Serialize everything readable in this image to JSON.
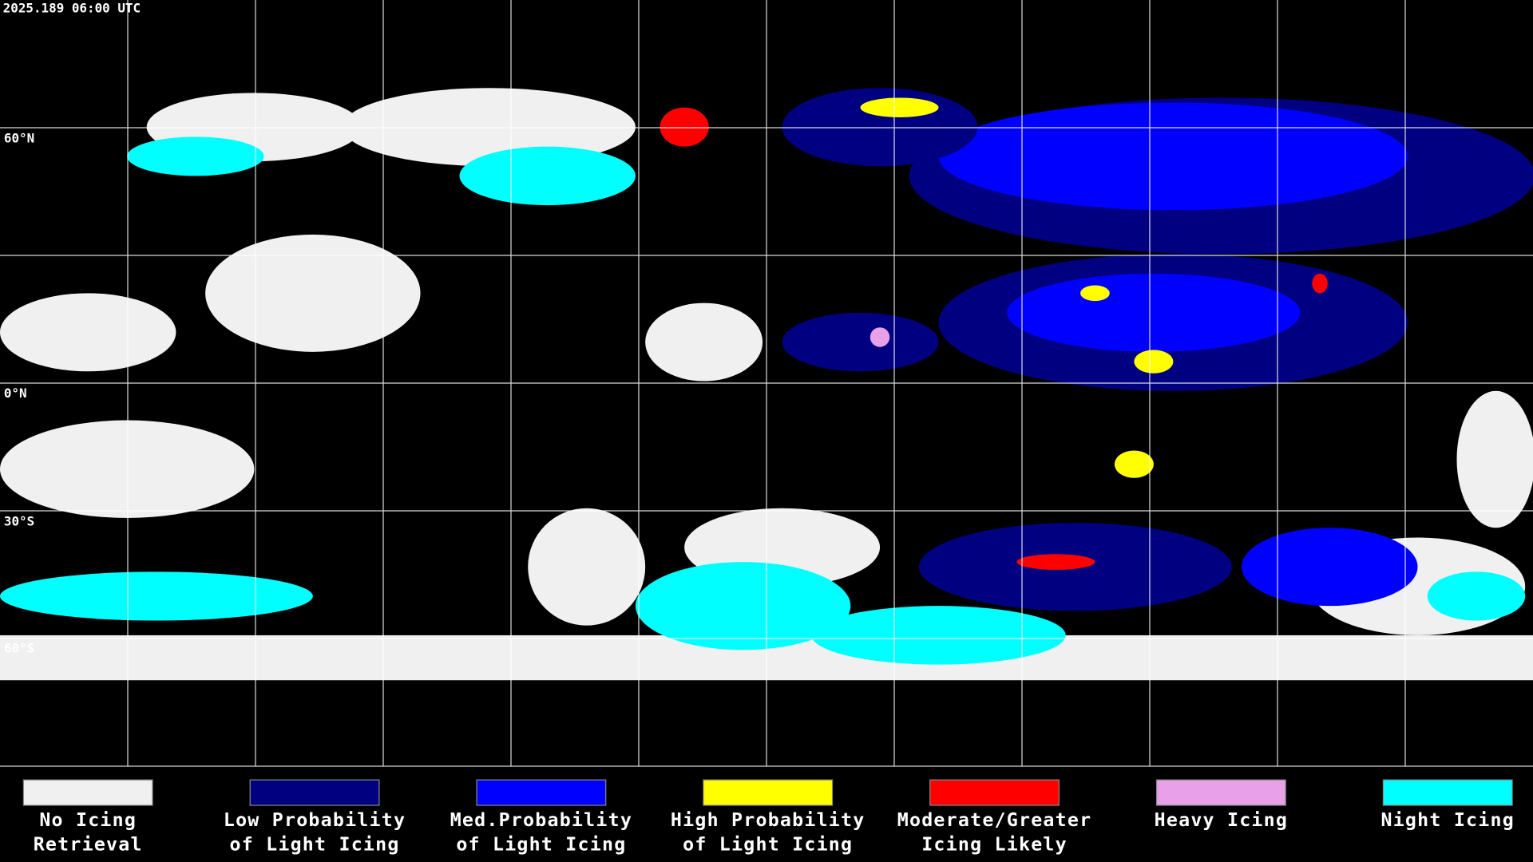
{
  "header": {
    "title": "2025.189 06:00 UTC"
  },
  "map": {
    "lat_labels": [
      "60°N",
      "0°N",
      "30°S",
      "60°S"
    ]
  },
  "legend": [
    {
      "label": [
        "No Icing",
        "Retrieval"
      ],
      "color": "#f0f0f0"
    },
    {
      "label": [
        "Low Probability",
        "of Light Icing"
      ],
      "color": "#000080"
    },
    {
      "label": [
        "Med.Probability",
        "of Light Icing"
      ],
      "color": "#0000ff"
    },
    {
      "label": [
        "High Probability",
        "of Light Icing"
      ],
      "color": "#ffff00"
    },
    {
      "label": [
        "Moderate/Greater",
        "Icing Likely"
      ],
      "color": "#ff0000"
    },
    {
      "label": [
        "Heavy Icing"
      ],
      "color": "#e8a0e8"
    },
    {
      "label": [
        "Night Icing"
      ],
      "color": "#00ffff"
    }
  ]
}
